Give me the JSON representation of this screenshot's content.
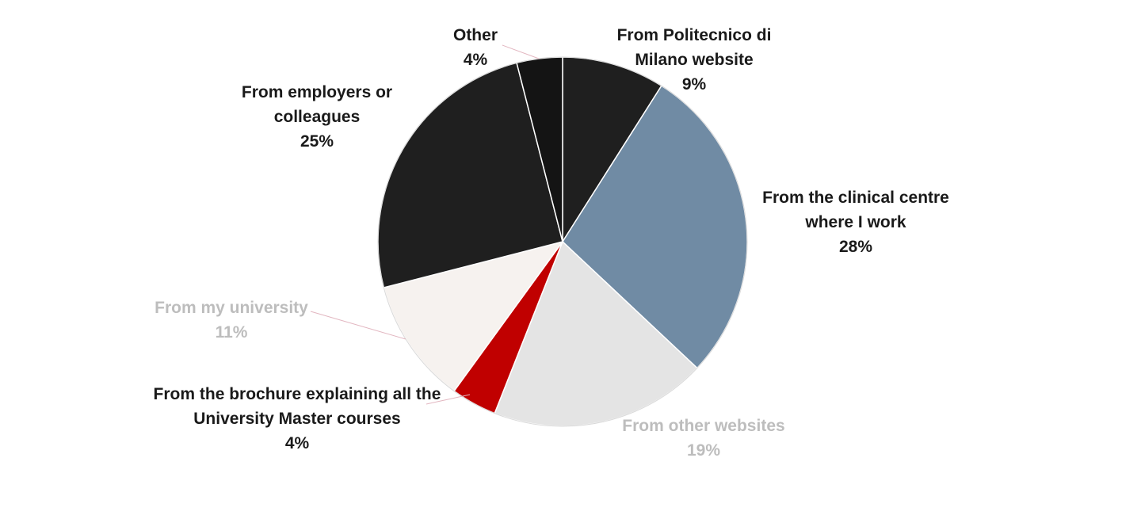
{
  "chart_data": {
    "type": "pie",
    "title": "",
    "start_angle_deg": 0,
    "direction": "clockwise",
    "slices": [
      {
        "label_lines": [
          "From Politecnico di",
          "Milano website"
        ],
        "pct_text": "9%",
        "value": 9,
        "color": "#1f1f1f",
        "label_color": "#1a1a1a"
      },
      {
        "label_lines": [
          "From the clinical centre",
          "where I work"
        ],
        "pct_text": "28%",
        "value": 28,
        "color": "#708ba4",
        "label_color": "#1a1a1a"
      },
      {
        "label_lines": [
          "From other websites"
        ],
        "pct_text": "19%",
        "value": 19,
        "color": "#e4e4e4",
        "label_color": "#bdbdbd"
      },
      {
        "label_lines": [
          "From the brochure explaining all the",
          "University Master courses"
        ],
        "pct_text": "4%",
        "value": 4,
        "color": "#c00000",
        "label_color": "#1a1a1a"
      },
      {
        "label_lines": [
          "From my university"
        ],
        "pct_text": "11%",
        "value": 11,
        "color": "#f6f2ef",
        "label_color": "#bdbdbd"
      },
      {
        "label_lines": [
          "From employers or",
          "colleagues"
        ],
        "pct_text": "25%",
        "value": 25,
        "color": "#1f1f1f",
        "label_color": "#1a1a1a"
      },
      {
        "label_lines": [
          "Other"
        ],
        "pct_text": "4%",
        "value": 4,
        "color": "#141414",
        "label_color": "#1a1a1a"
      }
    ],
    "leader_line_color": "#e2b6c0"
  }
}
